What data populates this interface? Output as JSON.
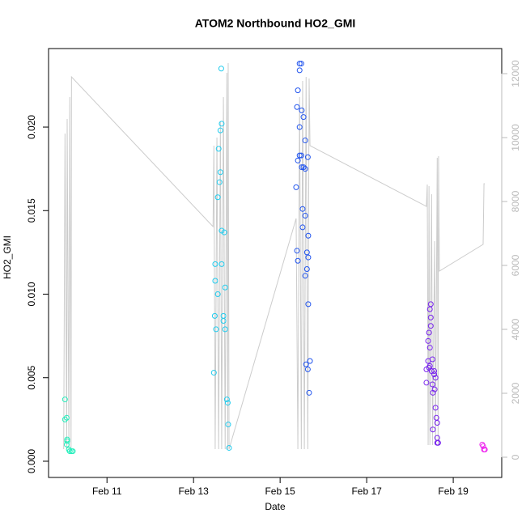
{
  "chart_data": {
    "type": "scatter",
    "title": "ATOM2 Northbound HO2_GMI",
    "xlabel": "Date",
    "ylabel": "HO2_GMI",
    "xlim": [
      9.65,
      20.12
    ],
    "xticks": [
      {
        "value": 11,
        "label": "Feb 11"
      },
      {
        "value": 13,
        "label": "Feb 13"
      },
      {
        "value": 15,
        "label": "Feb 15"
      },
      {
        "value": 17,
        "label": "Feb 17"
      },
      {
        "value": 19,
        "label": "Feb 19"
      }
    ],
    "ylim": [
      -0.00097,
      0.0247
    ],
    "yticks": [
      {
        "value": 0,
        "label": "0.000"
      },
      0.005,
      {
        "value": 0.01,
        "label": "0.010"
      },
      0.015,
      {
        "value": 0.02,
        "label": "0.020"
      }
    ],
    "y2lim": [
      -633,
      12785
    ],
    "y2ticks": [
      0,
      2000,
      4000,
      6000,
      8000,
      10000,
      12000
    ],
    "y2color": "#bbbbbb",
    "series": [
      {
        "type": "line",
        "axis": "y2",
        "color": "#cccccc",
        "x": [
          10.0,
          10.03,
          10.07,
          10.08,
          10.12,
          10.14,
          10.17,
          10.18,
          13.45,
          13.47,
          13.5,
          13.54,
          13.58,
          13.62,
          13.65,
          13.69,
          13.73,
          13.77,
          13.79,
          13.8,
          13.82,
          15.37,
          15.41,
          15.45,
          15.49,
          15.52,
          15.56,
          15.6,
          15.64,
          15.67,
          15.69,
          18.38,
          18.4,
          18.42,
          18.44,
          18.46,
          18.5,
          18.52,
          18.57,
          18.59,
          18.63,
          18.65,
          18.66,
          18.68,
          19.69,
          19.71,
          19.73
        ],
        "values": [
          253,
          10127,
          253,
          10582,
          253,
          11266,
          253,
          11899,
          7215,
          9747,
          253,
          10000,
          253,
          10506,
          253,
          11266,
          253,
          12025,
          253,
          12329,
          253,
          7468,
          253,
          11266,
          253,
          11772,
          253,
          11899,
          253,
          11848,
          9747,
          7848,
          8532,
          380,
          8481,
          380,
          8228,
          380,
          6759,
          380,
          9367,
          380,
          9418,
          5823,
          6658,
          8557,
          8557
        ]
      },
      {
        "color": "#22eebb",
        "x": [
          10.03,
          10.03,
          10.07,
          10.08,
          10.08,
          10.07,
          10.12,
          10.14,
          10.18,
          10.21
        ],
        "values": [
          0.0037,
          0.0025,
          0.0026,
          0.0013,
          0.0012,
          0.001,
          0.0007,
          0.0006,
          0.0006,
          0.0006
        ]
      },
      {
        "color": "#22ccee",
        "x": [
          13.64,
          13.65,
          13.62,
          13.58,
          13.62,
          13.6,
          13.56,
          13.65,
          13.71,
          13.5,
          13.65,
          13.5,
          13.56,
          13.73,
          13.69,
          13.49,
          13.69,
          13.52,
          13.73,
          13.47,
          13.77,
          13.79,
          13.8,
          13.82
        ],
        "values": [
          0.0235,
          0.0202,
          0.0198,
          0.0187,
          0.0173,
          0.0167,
          0.0158,
          0.0138,
          0.0137,
          0.0118,
          0.0118,
          0.0108,
          0.01,
          0.0104,
          0.0087,
          0.0087,
          0.0084,
          0.0079,
          0.0079,
          0.0053,
          0.0037,
          0.0035,
          0.0022,
          0.0008
        ]
      },
      {
        "color": "#2255ee",
        "x": [
          15.45,
          15.49,
          15.45,
          15.41,
          15.39,
          15.5,
          15.54,
          15.45,
          15.58,
          15.49,
          15.45,
          15.41,
          15.64,
          15.5,
          15.54,
          15.58,
          15.37,
          15.52,
          15.58,
          15.52,
          15.65,
          15.39,
          15.62,
          15.65,
          15.41,
          15.62,
          15.58,
          15.65,
          15.69,
          15.6,
          15.64,
          15.67
        ],
        "values": [
          0.0238,
          0.0238,
          0.0234,
          0.0222,
          0.0212,
          0.021,
          0.0206,
          0.02,
          0.0192,
          0.0183,
          0.0183,
          0.018,
          0.0182,
          0.0176,
          0.0176,
          0.0175,
          0.0164,
          0.0151,
          0.0147,
          0.014,
          0.0135,
          0.0126,
          0.0125,
          0.0122,
          0.012,
          0.0115,
          0.0111,
          0.0094,
          0.006,
          0.0058,
          0.0055,
          0.0041
        ]
      },
      {
        "color": "#7722ee",
        "x": [
          18.48,
          18.46,
          18.48,
          18.48,
          18.44,
          18.42,
          18.46,
          18.42,
          18.52,
          18.46,
          18.44,
          18.38,
          18.5,
          18.56,
          18.56,
          18.59,
          18.52,
          18.38,
          18.57,
          18.53,
          18.59,
          18.61,
          18.63,
          18.53,
          18.63,
          18.65,
          18.63
        ],
        "values": [
          0.0094,
          0.0091,
          0.0086,
          0.0081,
          0.0077,
          0.0072,
          0.0068,
          0.006,
          0.0061,
          0.0057,
          0.0056,
          0.0055,
          0.0054,
          0.0054,
          0.0052,
          0.005,
          0.0046,
          0.0047,
          0.0043,
          0.0041,
          0.0032,
          0.0026,
          0.0023,
          0.0019,
          0.0014,
          0.0011,
          0.0011
        ]
      },
      {
        "color": "#ee22ee",
        "x": [
          19.67,
          19.69,
          19.71,
          19.73
        ],
        "values": [
          0.001,
          0.0009,
          0.0007,
          0.0007
        ]
      }
    ]
  }
}
